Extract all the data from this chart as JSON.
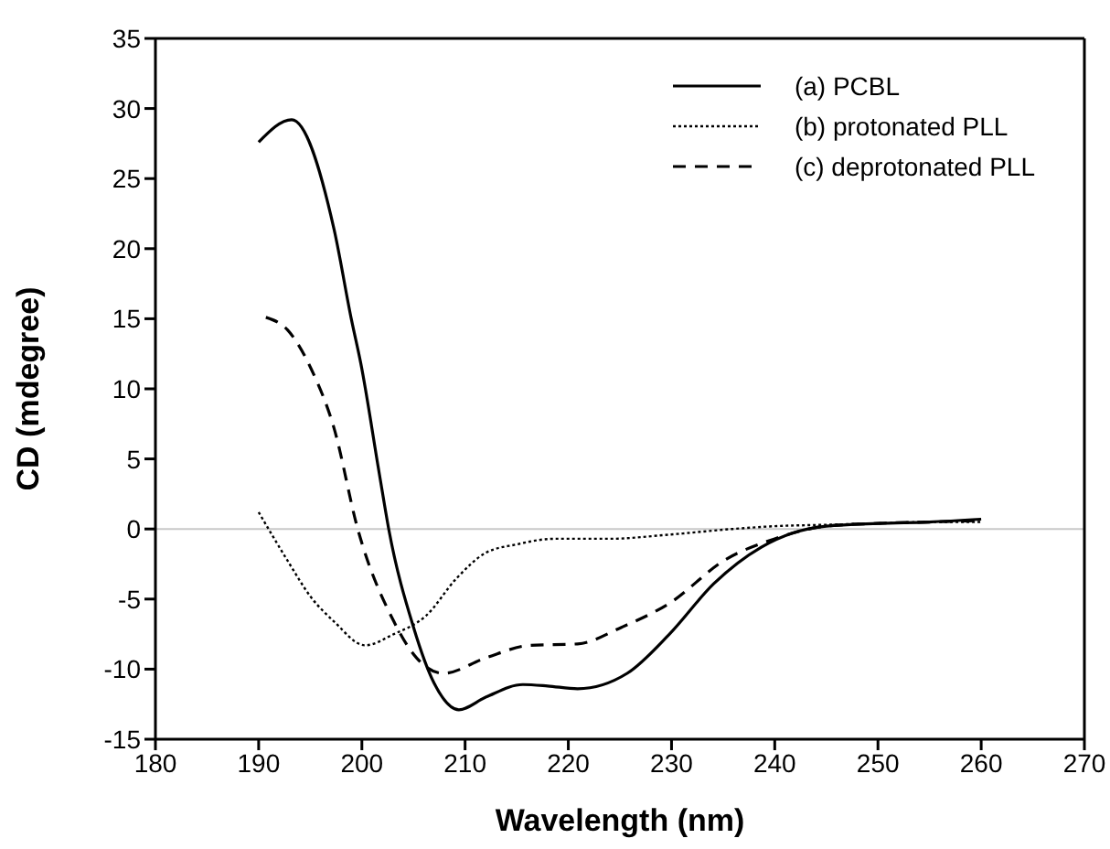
{
  "chart_data": {
    "type": "line",
    "xlabel": "Wavelength (nm)",
    "ylabel": "CD (mdegree)",
    "xlim": [
      180,
      270
    ],
    "xticks": [
      180,
      190,
      200,
      210,
      220,
      230,
      240,
      250,
      260,
      270
    ],
    "ylim": [
      -15,
      35
    ],
    "yticks": [
      -15,
      -10,
      -5,
      0,
      5,
      10,
      15,
      20,
      25,
      30,
      35
    ],
    "legend": "top right",
    "marker": "none",
    "ref_lines": [
      {
        "axis": "y",
        "value": 0,
        "color": "#c8c8c8"
      }
    ],
    "series": [
      {
        "name": "(a) PCBL",
        "color": "#000000",
        "line_style": "solid",
        "x": [
          190,
          193.2,
          197.3,
          199,
          199.9,
          201.7,
          202.6,
          205,
          207,
          209.4,
          212,
          215.6,
          218,
          220.9,
          225.7,
          229.8,
          234.1,
          238.7,
          241.7,
          245,
          250,
          255,
          260
        ],
        "values": [
          27.6,
          29.2,
          21.4,
          14.9,
          11.8,
          3.9,
          0,
          -7,
          -11,
          -12.9,
          -12,
          -11.1,
          -11.2,
          -11.4,
          -10.3,
          -7.5,
          -3.9,
          -1.3,
          -0.3,
          0.2,
          0.4,
          0.5,
          0.7
        ]
      },
      {
        "name": "(b) protonated PLL",
        "color": "#000000",
        "line_style": "dotted",
        "x": [
          190,
          193,
          195,
          197.3,
          200.3,
          203.1,
          206.2,
          209.2,
          212,
          215,
          218.6,
          224,
          229.8,
          235.9,
          240,
          245,
          250,
          255,
          260
        ],
        "values": [
          1.2,
          -2.5,
          -4.8,
          -6.6,
          -8.3,
          -7.5,
          -6.2,
          -3.5,
          -1.7,
          -1.1,
          -0.7,
          -0.7,
          -0.4,
          0,
          0.2,
          0.3,
          0.4,
          0.5,
          0.5
        ]
      },
      {
        "name": "(c) deprotonated PLL",
        "color": "#000000",
        "line_style": "dashed",
        "x": [
          190.7,
          192.8,
          195.1,
          197.3,
          199.6,
          203.1,
          205.3,
          207.9,
          212,
          216.3,
          220.9,
          225.2,
          229.8,
          235.2,
          240,
          245,
          250,
          255,
          260
        ],
        "values": [
          15.1,
          14.2,
          11.4,
          7.2,
          0,
          -6.6,
          -9.2,
          -10.3,
          -9.2,
          -8.3,
          -8.2,
          -7,
          -5.3,
          -2.2,
          -0.7,
          0.2,
          0.4,
          0.5,
          0.6
        ]
      }
    ]
  }
}
